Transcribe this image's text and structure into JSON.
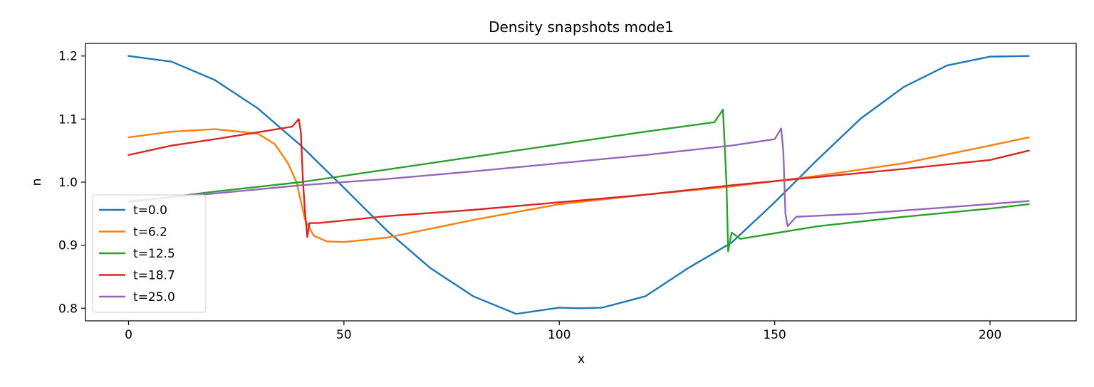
{
  "chart_data": {
    "type": "line",
    "title": "Density snapshots  mode1",
    "xlabel": "x",
    "ylabel": "n",
    "xlim": [
      -10,
      220
    ],
    "ylim": [
      0.78,
      1.22
    ],
    "xticks": [
      0,
      50,
      100,
      150,
      200
    ],
    "yticks": [
      0.8,
      0.9,
      1.0,
      1.1,
      1.2
    ],
    "xtick_labels": [
      "0",
      "50",
      "100",
      "150",
      "200"
    ],
    "ytick_labels": [
      "0.8",
      "0.9",
      "1.0",
      "1.1",
      "1.2"
    ],
    "grid": false,
    "legend_position": "lower-left",
    "series": [
      {
        "name": "t=0.0",
        "color": "#1f77b4",
        "x": [
          0,
          10,
          20,
          30,
          40,
          50,
          60,
          70,
          80,
          90,
          100,
          105,
          110,
          120,
          130,
          140,
          150,
          160,
          170,
          180,
          190,
          200,
          209
        ],
        "y": [
          1.2,
          1.191,
          1.162,
          1.117,
          1.058,
          0.991,
          0.923,
          0.864,
          0.819,
          0.791,
          0.801,
          0.8,
          0.801,
          0.819,
          0.864,
          0.904,
          0.968,
          1.036,
          1.101,
          1.151,
          1.185,
          1.199,
          1.2
        ]
      },
      {
        "name": "t=6.2",
        "color": "#ff7f0e",
        "x": [
          0,
          10,
          20,
          30,
          34,
          37,
          39,
          40,
          41,
          43,
          46,
          50,
          60,
          80,
          100,
          120,
          140,
          160,
          180,
          200,
          209
        ],
        "y": [
          1.071,
          1.08,
          1.084,
          1.077,
          1.06,
          1.03,
          1.0,
          0.97,
          0.94,
          0.915,
          0.906,
          0.905,
          0.912,
          0.94,
          0.965,
          0.98,
          0.993,
          1.01,
          1.03,
          1.058,
          1.071
        ]
      },
      {
        "name": "t=12.5",
        "color": "#2ca02c",
        "x": [
          0,
          20,
          40,
          60,
          80,
          100,
          120,
          136,
          138,
          138.8,
          139.2,
          140,
          142,
          160,
          180,
          200,
          209
        ],
        "y": [
          0.968,
          0.985,
          1.0,
          1.02,
          1.04,
          1.06,
          1.08,
          1.095,
          1.115,
          1.0,
          0.89,
          0.92,
          0.91,
          0.93,
          0.945,
          0.958,
          0.965
        ]
      },
      {
        "name": "t=18.7",
        "color": "#d62728",
        "x": [
          0,
          10,
          20,
          30,
          38,
          39.5,
          40,
          40.5,
          41,
          41.5,
          42,
          44,
          60,
          80,
          100,
          120,
          140,
          160,
          180,
          200,
          209
        ],
        "y": [
          1.043,
          1.058,
          1.068,
          1.079,
          1.088,
          1.1,
          1.08,
          1.0,
          0.95,
          0.913,
          0.935,
          0.935,
          0.946,
          0.956,
          0.968,
          0.98,
          0.995,
          1.008,
          1.021,
          1.035,
          1.05
        ]
      },
      {
        "name": "t=25.0",
        "color": "#9467bd",
        "x": [
          0,
          20,
          40,
          60,
          80,
          100,
          120,
          140,
          150,
          151.5,
          152,
          152.5,
          153,
          155,
          170,
          190,
          209
        ],
        "y": [
          0.97,
          0.982,
          0.995,
          1.005,
          1.017,
          1.03,
          1.043,
          1.058,
          1.068,
          1.085,
          1.05,
          0.95,
          0.93,
          0.945,
          0.95,
          0.96,
          0.97
        ]
      }
    ]
  }
}
